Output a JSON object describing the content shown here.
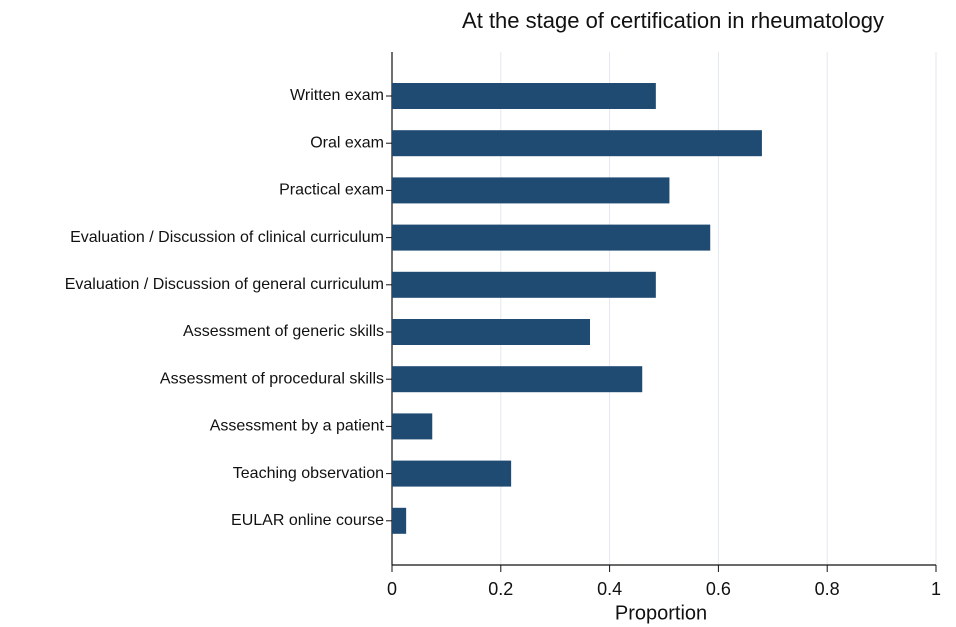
{
  "chart_data": {
    "type": "barh",
    "title": "At the stage of certification in rheumatology",
    "xlabel": "Proportion",
    "categories": [
      "Written exam",
      "Oral exam",
      "Practical exam",
      "Evaluation / Discussion of clinical curriculum",
      "Evaluation / Discussion of general curriculum",
      "Assessment of generic skills",
      "Assessment of procedural skills",
      "Assessment by a patient",
      "Teaching observation",
      "EULAR online course"
    ],
    "values": [
      0.485,
      0.68,
      0.51,
      0.585,
      0.485,
      0.364,
      0.46,
      0.074,
      0.219,
      0.026
    ],
    "color": "#1f4b73",
    "xlim": [
      0,
      1
    ],
    "xticks": [
      0,
      0.2,
      0.4,
      0.6,
      0.8,
      1
    ],
    "grid": true
  }
}
